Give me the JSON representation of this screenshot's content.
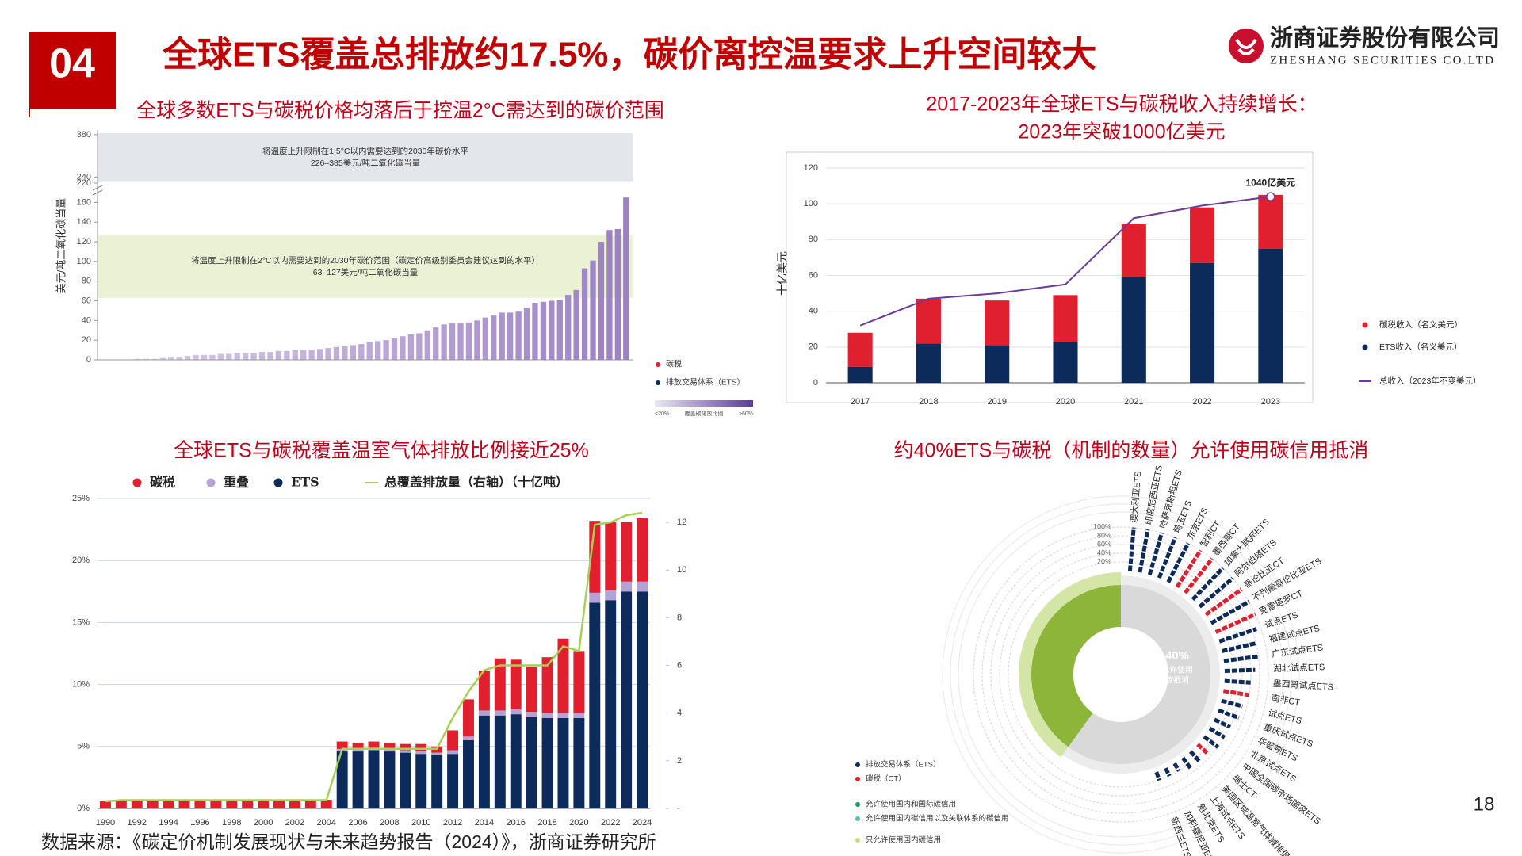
{
  "header": {
    "number": "04",
    "title": "全球ETS覆盖总排放约17.5%，碳价离控温要求上升空间较大",
    "company": "浙商证券股份有限公司",
    "company_en": "ZHESHANG SECURITIES CO.LTD"
  },
  "page_number": "18",
  "source": "数据来源：《碳定价机制发展现状与未来趋势报告（2024）》，浙商证券研究所",
  "chart_data": [
    {
      "type": "bar",
      "title": "全球多数ETS与碳税价格均落后于控温2°C需达到的碳价范围",
      "y_label": "美元/吨二氧化碳当量",
      "values": [
        0,
        0,
        0,
        0,
        1,
        1,
        1,
        2,
        3,
        3,
        4,
        5,
        5,
        5,
        6,
        6,
        7,
        7,
        7,
        8,
        8,
        9,
        9,
        10,
        10,
        10,
        11,
        12,
        13,
        14,
        15,
        16,
        18,
        19,
        20,
        22,
        24,
        26,
        27,
        30,
        33,
        36,
        37,
        37,
        38,
        40,
        43,
        45,
        48,
        48,
        49,
        53,
        58,
        59,
        60,
        61,
        66,
        71,
        93,
        101,
        120,
        132,
        133,
        165
      ],
      "color": "#9b7fc3",
      "ylim": [
        0,
        385
      ],
      "axis_break": [
        170,
        220
      ],
      "yticks": [
        0,
        20,
        40,
        60,
        80,
        100,
        120,
        140,
        160,
        220,
        240,
        380
      ],
      "bands": [
        {
          "low": 226,
          "high": 385,
          "color": "#e3e6ea",
          "text": [
            "将温度上升限制在1.5°C以内需要达到的2030年碳价水平",
            "226–385美元/吨二氧化碳当量"
          ]
        },
        {
          "low": 63,
          "high": 127,
          "color": "#eaf1d5",
          "text": [
            "将温度上升限制在2°C以内需要达到的2030年碳价范围（碳定价高级别委员会建议达到的水平）",
            "63–127美元/吨二氧化碳当量"
          ]
        }
      ],
      "legend": [
        {
          "name": "碳税",
          "color": "#e0202e"
        },
        {
          "name": "排放交易体系（ETS）",
          "color": "#0c2a5a"
        }
      ],
      "gradient_labels": [
        "<20%",
        "覆盖碳排放比例",
        ">60%"
      ]
    },
    {
      "type": "stacked_bar_line",
      "title": [
        "2017-2023年全球ETS与碳税收入持续增长：",
        "2023年突破1000亿美元"
      ],
      "y_label": "十亿美元",
      "categories": [
        "2017",
        "2018",
        "2019",
        "2020",
        "2021",
        "2022",
        "2023"
      ],
      "series": [
        {
          "name": "碳税收入（名义美元）",
          "color": "#e0202e",
          "values": [
            19,
            25,
            25,
            26,
            30,
            31,
            30
          ]
        },
        {
          "name": "ETS收入（名义美元）",
          "color": "#0c2a5a",
          "values": [
            9,
            22,
            21,
            23,
            59,
            67,
            75
          ]
        },
        {
          "name": "总收入（2023年不变美元）",
          "color": "#6a3d9a",
          "type": "line",
          "values": [
            32,
            47,
            50,
            55,
            92,
            99,
            104
          ]
        }
      ],
      "annotation": "1040亿美元",
      "ylim": [
        0,
        120
      ],
      "yticks": [
        0,
        20,
        40,
        60,
        80,
        100,
        120
      ],
      "grid": true
    },
    {
      "type": "stacked_bar_line",
      "title": "全球ETS与碳税覆盖温室气体排放比例接近25%",
      "categories": [
        "1990",
        null,
        "1992",
        null,
        "1994",
        null,
        "1996",
        null,
        "1998",
        null,
        "2000",
        null,
        "2002",
        null,
        "2004",
        null,
        "2006",
        null,
        "2008",
        null,
        "2010",
        null,
        "2012",
        null,
        "2014",
        null,
        "2016",
        null,
        "2018",
        null,
        "2020",
        null,
        "2022",
        null,
        "2024"
      ],
      "series": [
        {
          "name": "碳税",
          "color": "#e0202e",
          "values": [
            0.6,
            0.7,
            0.7,
            0.7,
            0.7,
            0.7,
            0.7,
            0.7,
            0.7,
            0.7,
            0.7,
            0.7,
            0.7,
            0.7,
            0.7,
            0.6,
            0.5,
            0.5,
            0.5,
            0.5,
            0.6,
            0.5,
            1.6,
            3.0,
            3.2,
            4.2,
            4.0,
            3.6,
            4.5,
            6.0,
            5.0,
            5.8,
            5.5,
            4.8,
            5.1
          ]
        },
        {
          "name": "重叠",
          "color": "#b3a3d4",
          "values": [
            0,
            0,
            0,
            0,
            0,
            0,
            0,
            0,
            0,
            0,
            0,
            0,
            0,
            0,
            0,
            0.2,
            0.2,
            0.2,
            0.2,
            0.2,
            0.2,
            0.2,
            0.3,
            0.3,
            0.4,
            0.4,
            0.4,
            0.4,
            0.4,
            0.4,
            0.4,
            0.8,
            0.8,
            0.8,
            0.8
          ]
        },
        {
          "name": "ETS",
          "color": "#0c2a5a",
          "values": [
            0,
            0,
            0,
            0,
            0,
            0,
            0,
            0,
            0,
            0,
            0,
            0,
            0,
            0,
            0,
            4.6,
            4.6,
            4.7,
            4.6,
            4.5,
            4.4,
            4.3,
            4.4,
            5.5,
            7.5,
            7.5,
            7.6,
            7.4,
            7.3,
            7.3,
            7.3,
            16.6,
            16.8,
            17.5,
            17.5
          ]
        },
        {
          "name": "总覆盖排放量（右轴）（十亿吨）",
          "color": "#a6d155",
          "type": "line",
          "axis": "y2",
          "values": [
            0.3,
            0.35,
            0.35,
            0.35,
            0.35,
            0.35,
            0.35,
            0.35,
            0.35,
            0.35,
            0.35,
            0.35,
            0.35,
            0.35,
            0.35,
            2.5,
            2.5,
            2.5,
            2.5,
            2.5,
            2.5,
            2.5,
            3.8,
            4.9,
            5.8,
            6.0,
            6.0,
            6.0,
            6.0,
            6.8,
            6.6,
            11.9,
            12.0,
            12.3,
            12.4
          ]
        }
      ],
      "ylim": [
        0,
        25
      ],
      "yticks": [
        {
          "value": 0,
          "label": "0%"
        },
        {
          "value": 5,
          "label": "5%"
        },
        {
          "value": 10,
          "label": "10%"
        },
        {
          "value": 15,
          "label": "15%"
        },
        {
          "value": 20,
          "label": "20%"
        },
        {
          "value": 25,
          "label": "25%"
        }
      ],
      "y2lim": [
        0,
        13
      ],
      "y2ticks": [
        {
          "value": 0,
          "label": "-"
        },
        2,
        4,
        6,
        8,
        10,
        12
      ],
      "grid": true
    },
    {
      "type": "radial",
      "title": "约40%ETS与碳税（机制的数量）允许使用碳信用抵消",
      "categories": [
        "澳大利亚ETS",
        "印度尼西亚ETS",
        "哈萨克斯坦ETS",
        "埼玉ETS",
        "东京ETS",
        "智利CT",
        "墨西哥CT",
        "加拿大联邦ETS",
        "阿尔伯塔ETS",
        "哥伦比亚CT",
        "不列颠哥伦比亚ETS",
        "克雷塔罗CT",
        "试点ETS",
        "福建试点ETS",
        "广东试点ETS",
        "湖北试点ETS",
        "墨西哥试点ETS",
        "南非CT",
        "试点ETS",
        "重庆试点ETS",
        "华盛顿ETS",
        "北京试点ETS",
        "中国全国碳市场国家ETS",
        "瑞士CT",
        "美国区域温室气体减排倡议（RGGI）",
        "上海试点ETS",
        "魁北克ETS",
        "加利福尼亚ETS",
        "新西兰ETS"
      ],
      "values": [
        100,
        100,
        100,
        100,
        100,
        100,
        100,
        100,
        100,
        100,
        100,
        100,
        90,
        80,
        80,
        70,
        60,
        60,
        50,
        50,
        40,
        40,
        40,
        30,
        30,
        30,
        20,
        20,
        20
      ],
      "colors": [
        "#0c2a5a",
        "#0c2a5a",
        "#0c2a5a",
        "#0c2a5a",
        "#0c2a5a",
        "#e0202e",
        "#e0202e",
        "#0c2a5a",
        "#0c2a5a",
        "#e0202e",
        "#0c2a5a",
        "#e0202e",
        "#0c2a5a",
        "#0c2a5a",
        "#0c2a5a",
        "#0c2a5a",
        "#0c2a5a",
        "#e0202e",
        "#0c2a5a",
        "#0c2a5a",
        "#0c2a5a",
        "#0c2a5a",
        "#0c2a5a",
        "#e0202e",
        "#0c2a5a",
        "#0c2a5a",
        "#0c2a5a",
        "#0c2a5a",
        "#0c2a5a"
      ],
      "rlim": [
        0,
        100
      ],
      "rticks": [
        {
          "value": 20,
          "label": "20%"
        },
        {
          "value": 40,
          "label": "40%"
        },
        {
          "value": 60,
          "label": "60%"
        },
        {
          "value": 80,
          "label": "80%"
        },
        {
          "value": 100,
          "label": "100%"
        }
      ],
      "share": 40,
      "share_label": "40%",
      "share_text": [
        "允许使用",
        "碳抵消"
      ],
      "share_color": "#8db53a",
      "legend": [
        {
          "name": "排放交易体系（ETS）",
          "color": "#0c2a5a"
        },
        {
          "name": "碳税（CT）",
          "color": "#e0202e"
        },
        {
          "name": "允许使用国内和国际碳信用",
          "color": "#1a9a5a"
        },
        {
          "name": "允许使用国内碳信用以及关联体系的碳信用",
          "color": "#58c0b0"
        },
        {
          "name": "只允许使用国内碳信用",
          "color": "#c5dc7d"
        }
      ]
    }
  ]
}
